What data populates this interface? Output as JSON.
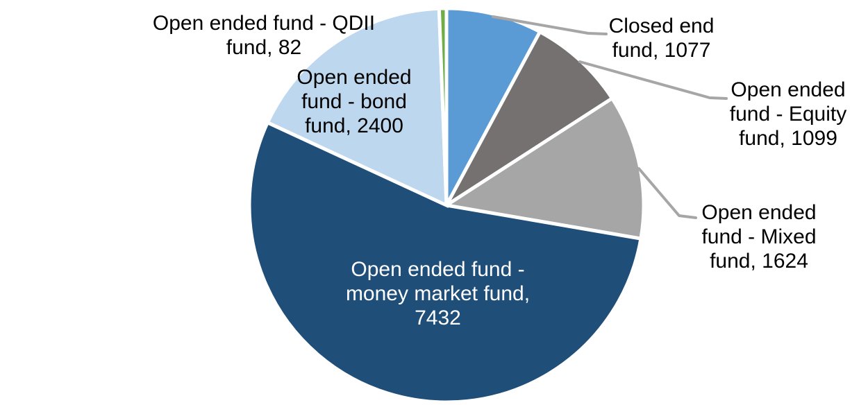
{
  "chart_data": {
    "type": "pie",
    "title": "",
    "legend": "none",
    "background": "#FFFFFF",
    "leader_line_color": "#A6A6A6",
    "label_font_color_default": "#000000",
    "direction": "clockwise",
    "start_angle_deg": 0,
    "total": 13714,
    "categories": [
      "Closed end fund",
      "Open ended fund - Equity fund",
      "Open ended fund - Mixed fund",
      "Open ended fund - money market fund",
      "Open ended fund - bond fund",
      "Open ended fund - QDII fund"
    ],
    "values": [
      1077,
      1099,
      1624,
      7432,
      2400,
      82
    ],
    "slices": [
      {
        "label": "Closed end fund",
        "value": 1077,
        "color": "#5B9BD5",
        "label_color": "#000000",
        "label_lines": [
          "Closed end",
          "fund, 1077"
        ]
      },
      {
        "label": "Open ended fund - Equity fund",
        "value": 1099,
        "color": "#757171",
        "label_color": "#000000",
        "label_lines": [
          "Open ended",
          "fund - Equity",
          "fund, 1099"
        ]
      },
      {
        "label": "Open ended fund - Mixed fund",
        "value": 1624,
        "color": "#A6A6A6",
        "label_color": "#000000",
        "label_lines": [
          "Open ended",
          "fund - Mixed",
          "fund, 1624"
        ]
      },
      {
        "label": "Open ended fund - money market fund",
        "value": 7432,
        "color": "#1F4E79",
        "label_color": "#FFFFFF",
        "label_lines": [
          "Open ended fund -",
          "money market fund,",
          "7432"
        ]
      },
      {
        "label": "Open ended fund - bond fund",
        "value": 2400,
        "color": "#BDD7EE",
        "label_color": "#000000",
        "label_lines": [
          "Open ended",
          "fund - bond",
          "fund, 2400"
        ]
      },
      {
        "label": "Open ended fund - QDII fund",
        "value": 82,
        "color": "#70AD47",
        "label_color": "#000000",
        "label_lines": [
          "Open ended fund - QDII",
          "fund, 82"
        ]
      }
    ]
  }
}
